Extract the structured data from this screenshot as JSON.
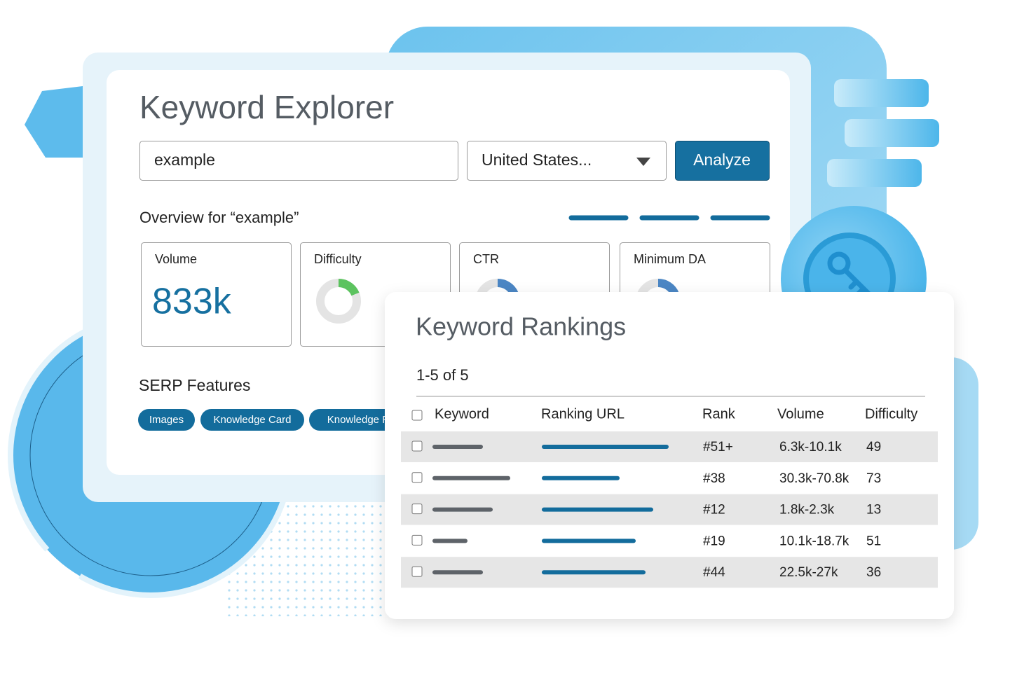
{
  "explorer": {
    "title": "Keyword Explorer",
    "search_value": "example",
    "country": "United States...",
    "button": "Analyze",
    "overview_title": "Overview for “example”",
    "metrics": [
      {
        "label": "Volume",
        "value": "833k"
      },
      {
        "label": "Difficulty"
      },
      {
        "label": "CTR"
      },
      {
        "label": "Minimum DA"
      }
    ],
    "serp_title": "SERP Features",
    "serp_features": [
      "Images",
      "Knowledge Card",
      "Knowledge P"
    ]
  },
  "rankings": {
    "title": "Keyword Rankings",
    "count": "1-5 of 5",
    "columns": [
      "Keyword",
      "Ranking URL",
      "Rank",
      "Volume",
      "Difficulty"
    ],
    "rows": [
      [
        "#51+",
        "6.3k-10.1k",
        "49"
      ],
      [
        "#38",
        "30.3k-70.8k",
        "73"
      ],
      [
        "#12",
        "1.8k-2.3k",
        "13"
      ],
      [
        "#19",
        "10.1k-18.7k",
        "51"
      ],
      [
        "#44",
        "22.5k-27k",
        "36"
      ]
    ]
  }
}
